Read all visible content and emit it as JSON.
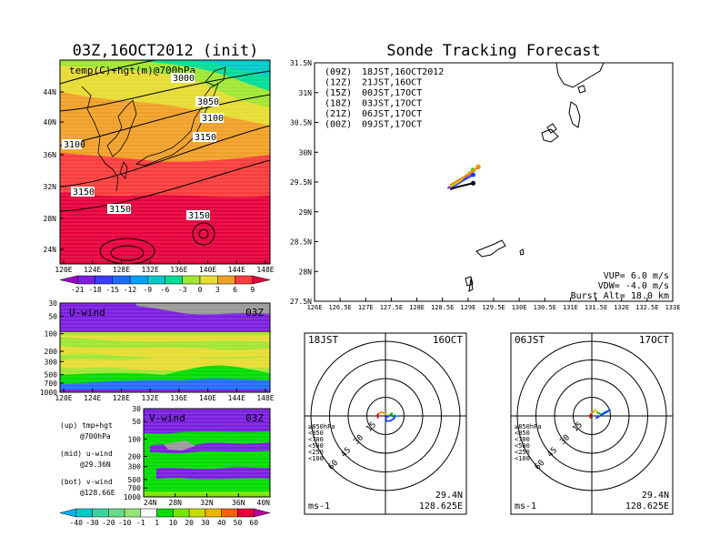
{
  "left_top": {
    "title": "03Z,16OCT2012 (init)",
    "field_label": "temp(C)+hgt(m)@700hPa",
    "lat_ticks": [
      "44N",
      "40N",
      "36N",
      "32N",
      "28N",
      "24N"
    ],
    "lon_ticks": [
      "120E",
      "124E",
      "128E",
      "132E",
      "136E",
      "140E",
      "144E",
      "148E"
    ],
    "contour_labels": [
      "3000",
      "3050",
      "3100",
      "3150",
      "3150",
      "3150",
      "3150",
      "3100"
    ],
    "colorbar_ticks": [
      "-21",
      "-18",
      "-15",
      "-12",
      "-9",
      "-6",
      "-3",
      "0",
      "3",
      "6",
      "9"
    ],
    "colorbar_colors": [
      "#a000c8",
      "#7a1ee0",
      "#3c3cff",
      "#1e6eff",
      "#00a0ff",
      "#00c8c8",
      "#00dc96",
      "#a0e632",
      "#e6dc32",
      "#f0a028",
      "#fa3c3c",
      "#e6003c"
    ]
  },
  "u_panel": {
    "label": "U-wind",
    "time": "03Z",
    "y_ticks": [
      "30",
      "50",
      "100",
      "200",
      "300",
      "500",
      "700",
      "1000"
    ],
    "x_ticks": [
      "120E",
      "124E",
      "128E",
      "132E",
      "136E",
      "140E",
      "144E",
      "148E"
    ]
  },
  "v_panel": {
    "label": "V-wind",
    "time": "03Z",
    "y_ticks": [
      "30",
      "50",
      "100",
      "200",
      "300",
      "500",
      "700",
      "1000"
    ],
    "x_ticks": [
      "24N",
      "28N",
      "32N",
      "36N",
      "40N"
    ]
  },
  "notes": [
    {
      "line1": "(up)  tmp+hgt",
      "line2": "@700hPa"
    },
    {
      "line1": "(mid) u-wind",
      "line2": "@29.36N"
    },
    {
      "line1": "(bot) v-wind",
      "line2": "@128.66E"
    }
  ],
  "wind_colorbar": {
    "ticks": [
      "-40",
      "-30",
      "-20",
      "-10",
      "-1",
      "1",
      "10",
      "20",
      "30",
      "40",
      "50",
      "60"
    ],
    "colors": [
      "#00b4f0",
      "#00c8c8",
      "#3cd2a0",
      "#64dc8c",
      "#96e678",
      "#ffffff",
      "#00dc00",
      "#78e600",
      "#c8dc00",
      "#f0b400",
      "#f06400",
      "#e6003c",
      "#b4009b"
    ]
  },
  "chart_data": {
    "type": "scatter",
    "title": "Sonde Tracking Forecast",
    "x_ticks": [
      "126E",
      "126.5E",
      "127E",
      "127.5E",
      "128E",
      "128.5E",
      "129E",
      "129.5E",
      "130E",
      "130.5E",
      "131E",
      "131.5E",
      "132E",
      "132.5E",
      "133E"
    ],
    "y_ticks": [
      "31.5N",
      "31N",
      "30.5N",
      "30N",
      "29.5N",
      "29N",
      "28.5N",
      "28N",
      "27.5N"
    ],
    "xlim": [
      126,
      133
    ],
    "ylim": [
      27.5,
      31.5
    ],
    "launch_times": [
      {
        "code": "(09Z)",
        "label": "18JST,16OCT2012",
        "color": "#000000"
      },
      {
        "code": "(12Z)",
        "label": "21JST,16OCT",
        "color": "#a000c8"
      },
      {
        "code": "(15Z)",
        "label": "00JST,17OCT",
        "color": "#1e3cff"
      },
      {
        "code": "(18Z)",
        "label": "03JST,17OCT",
        "color": "#00b400"
      },
      {
        "code": "(21Z)",
        "label": "06JST,17OCT",
        "color": "#e6c800"
      },
      {
        "code": "(00Z)",
        "label": "09JST,17OCT",
        "color": "#f08c00"
      }
    ],
    "series": [
      {
        "name": "(09Z)",
        "x": [
          128.65,
          128.8,
          128.95,
          129.1
        ],
        "y": [
          29.38,
          29.42,
          29.45,
          29.48
        ]
      },
      {
        "name": "(12Z)",
        "x": [
          128.6,
          128.75,
          128.9,
          129.05
        ],
        "y": [
          29.4,
          29.45,
          29.55,
          29.65
        ]
      },
      {
        "name": "(15Z)",
        "x": [
          128.65,
          128.8,
          128.95,
          129.1
        ],
        "y": [
          29.4,
          29.47,
          29.55,
          29.62
        ]
      },
      {
        "name": "(18Z)",
        "x": [
          128.65,
          128.8,
          128.95,
          129.1
        ],
        "y": [
          29.42,
          29.5,
          29.6,
          29.7
        ]
      },
      {
        "name": "(21Z)",
        "x": [
          128.65,
          128.85,
          129.0,
          129.2
        ],
        "y": [
          29.42,
          29.52,
          29.64,
          29.76
        ]
      },
      {
        "name": "(00Z)",
        "x": [
          128.65,
          128.85,
          129.05,
          129.2
        ],
        "y": [
          29.45,
          29.55,
          29.65,
          29.75
        ]
      }
    ],
    "info": [
      "VUP=  6.0 m/s",
      "VDW= -4.0 m/s",
      "Burst Alt= 18.0 km"
    ]
  },
  "hodographs": [
    {
      "title_left": "18JST",
      "title_right": "16OCT",
      "ring_labels": [
        "15",
        "30",
        "45",
        "60"
      ],
      "level_legend": [
        "≥850hPa",
        "<850",
        "<700",
        "<500",
        "<250",
        "<100"
      ],
      "level_colors": [
        "#e60000",
        "#f08c00",
        "#d2c800",
        "#00b400",
        "#00a0e6",
        "#1e3cff"
      ],
      "unit": "ms-1",
      "lat": "29.4N",
      "lon": "128.625E",
      "segments": [
        {
          "color": "#e60000",
          "u": [
            -6,
            -6.5,
            -5.5
          ],
          "v": [
            -2,
            0.5,
            2
          ]
        },
        {
          "color": "#f08c00",
          "u": [
            -5.5,
            -3,
            -1
          ],
          "v": [
            2,
            3,
            2
          ]
        },
        {
          "color": "#d2c800",
          "u": [
            -1,
            1,
            3
          ],
          "v": [
            2,
            1,
            0
          ]
        },
        {
          "color": "#00b400",
          "u": [
            3,
            5,
            6
          ],
          "v": [
            0,
            2,
            -1
          ]
        },
        {
          "color": "#00a0e6",
          "u": [
            6,
            8,
            10
          ],
          "v": [
            -1,
            -0.5,
            0
          ]
        },
        {
          "color": "#1e3cff",
          "u": [
            3,
            0.5,
            0.5,
            4,
            7,
            7.5
          ],
          "v": [
            0,
            -1,
            -4,
            -4,
            -2,
            1
          ]
        }
      ]
    },
    {
      "title_left": "06JST",
      "title_right": "17OCT",
      "ring_labels": [
        "15",
        "30",
        "45",
        "60"
      ],
      "level_legend": [
        "≥850hPa",
        "<850",
        "<700",
        "<500",
        "<250",
        "<100"
      ],
      "level_colors": [
        "#e60000",
        "#f08c00",
        "#d2c800",
        "#00b400",
        "#00a0e6",
        "#1e3cff"
      ],
      "unit": "ms-1",
      "lat": "29.4N",
      "lon": "128.625E",
      "segments": [
        {
          "color": "#e60000",
          "u": [
            -1,
            -1.5,
            -0.5
          ],
          "v": [
            -2,
            0,
            2
          ]
        },
        {
          "color": "#f08c00",
          "u": [
            -0.5,
            1,
            2
          ],
          "v": [
            2,
            3,
            4
          ]
        },
        {
          "color": "#d2c800",
          "u": [
            2,
            3,
            4
          ],
          "v": [
            4,
            5,
            3
          ]
        },
        {
          "color": "#00b400",
          "u": [
            4,
            6,
            8,
            10
          ],
          "v": [
            3,
            2,
            1,
            3
          ]
        },
        {
          "color": "#00a0e6",
          "u": [
            10,
            13,
            15
          ],
          "v": [
            3,
            4,
            5
          ]
        },
        {
          "color": "#1e3cff",
          "u": [
            15,
            12,
            8,
            5,
            3
          ],
          "v": [
            5,
            3,
            1,
            -1,
            -2
          ]
        }
      ]
    }
  ]
}
